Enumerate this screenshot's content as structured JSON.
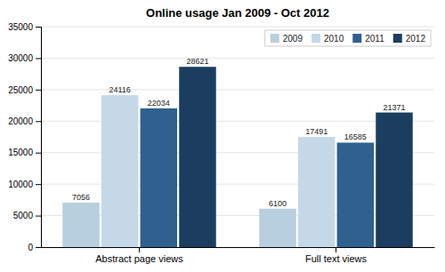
{
  "chart_data": {
    "type": "bar",
    "title": "Online usage Jan 2009 - Oct 2012",
    "categories": [
      "Abstract page views",
      "Full text views"
    ],
    "series": [
      {
        "name": "2009",
        "color": "#b8cfe0",
        "values": [
          7056,
          6100
        ]
      },
      {
        "name": "2010",
        "color": "#c5d8e8",
        "values": [
          24116,
          17491
        ]
      },
      {
        "name": "2011",
        "color": "#2e6090",
        "values": [
          22034,
          16585
        ]
      },
      {
        "name": "2012",
        "color": "#1b3d5f",
        "values": [
          28621,
          21371
        ]
      }
    ],
    "ylim": [
      0,
      35000
    ],
    "yticks": [
      0,
      5000,
      10000,
      15000,
      20000,
      25000,
      30000,
      35000
    ],
    "grid": true,
    "legend": "upper right",
    "data_labels": true
  }
}
